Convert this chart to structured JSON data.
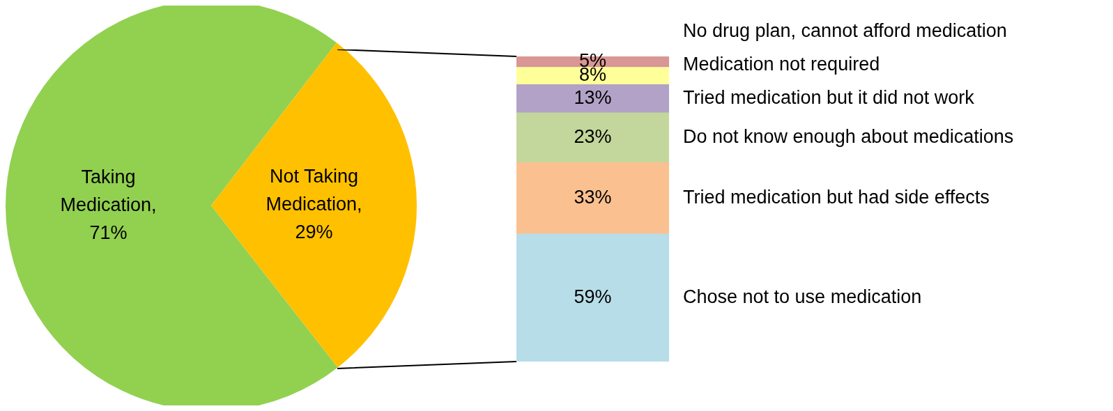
{
  "chart_data": [
    {
      "type": "pie",
      "categories": [
        "Taking Medication",
        "Not Taking Medication"
      ],
      "values": [
        71,
        29
      ],
      "colors": [
        "#92d050",
        "#ffc000"
      ],
      "value_labels": [
        ", 71%",
        ", 29%"
      ]
    },
    {
      "type": "bar",
      "stacked": true,
      "categories": [
        null
      ],
      "series": [
        {
          "name": "Chose not to use medication",
          "color": "#b7dde8",
          "values": [
            59
          ],
          "value_labels": [
            "59%"
          ]
        },
        {
          "name": "Tried medication but had side effects",
          "color": "#fac090",
          "values": [
            33
          ],
          "value_labels": [
            "33%"
          ]
        },
        {
          "name": "Do not know enough about medications",
          "color": "#c3d69b",
          "values": [
            23
          ],
          "value_labels": [
            "23%"
          ]
        },
        {
          "name": "Tried medication but it did not work",
          "color": "#b3a2c7",
          "values": [
            13
          ],
          "value_labels": [
            "13%"
          ]
        },
        {
          "name": "Medication not required",
          "color": "#ffff99",
          "values": [
            8
          ],
          "value_labels": [
            "8%"
          ]
        },
        {
          "name": "No drug plan, cannot afford medication",
          "color": "#d99694",
          "values": [
            5
          ],
          "value_labels": [
            "5%"
          ]
        }
      ]
    }
  ]
}
